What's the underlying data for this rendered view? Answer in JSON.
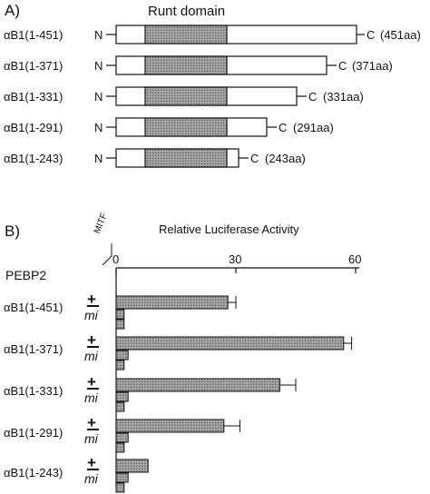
{
  "panelA": {
    "label": "A)",
    "domain_label": "Runt domain",
    "n_terminus": "N",
    "c_terminus": "C",
    "constructs": [
      {
        "name": "αB1(1-451)",
        "length_label": "(451aa)",
        "length": 451
      },
      {
        "name": "αB1(1-371)",
        "length_label": "(371aa)",
        "length": 371
      },
      {
        "name": "αB1(1-331)",
        "length_label": "(331aa)",
        "length": 331
      },
      {
        "name": "αB1(1-291)",
        "length_label": "(291aa)",
        "length": 291
      },
      {
        "name": "αB1(1-243)",
        "length_label": "(243aa)",
        "length": 243
      }
    ]
  },
  "panelB": {
    "label": "B)",
    "pebp2_label": "PEBP2",
    "mitf_label": "MITF",
    "plus_label": "+",
    "mi_label": "mi"
  },
  "chart_data": {
    "type": "bar",
    "orientation": "horizontal",
    "title": "Relative Luciferase Activity",
    "xlim": [
      0,
      60
    ],
    "ticks": [
      0,
      30,
      60
    ],
    "categories": [
      "αB1(1-451)",
      "αB1(1-371)",
      "αB1(1-331)",
      "αB1(1-291)",
      "αB1(1-243)"
    ],
    "series": [
      {
        "values": [
          28,
          57,
          41,
          27,
          8
        ],
        "errors": [
          2,
          2,
          4,
          4,
          0
        ]
      },
      {
        "values": [
          2,
          3,
          3,
          3,
          3
        ],
        "errors": [
          0,
          0,
          0,
          0,
          0
        ]
      },
      {
        "values": [
          2,
          2,
          2,
          2,
          2
        ],
        "errors": [
          0,
          0,
          0,
          0,
          0
        ]
      }
    ]
  }
}
